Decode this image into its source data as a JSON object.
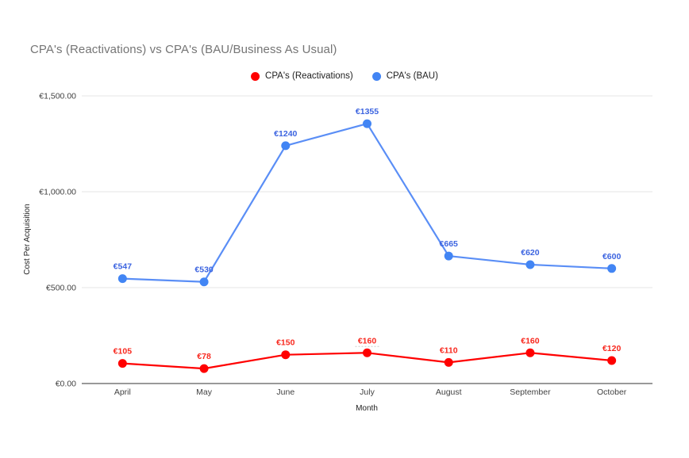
{
  "page": {
    "background": "#ffffff"
  },
  "header": {
    "title": "CPA's (Reactivations) vs CPA's (BAU/Business As Usual)",
    "title_color": "#757575"
  },
  "legend": {
    "position": "top-center",
    "items": [
      {
        "label": "CPA's (Reactivations)",
        "color": "#ff0000"
      },
      {
        "label": "CPA's (BAU)",
        "color": "#4285f4"
      }
    ]
  },
  "chart_data": {
    "type": "line",
    "title": "CPA's (Reactivations) vs CPA's (BAU/Business As Usual)",
    "categories": [
      "April",
      "May",
      "June",
      "July",
      "August",
      "September",
      "October"
    ],
    "series": [
      {
        "name": "CPA's (Reactivations)",
        "color": "#ff0000",
        "line_color": "#ff0000",
        "label_color": "#f8281e",
        "values": [
          105,
          78,
          150,
          160,
          110,
          160,
          120
        ],
        "labels": [
          "€105",
          "€78",
          "€150",
          "€160",
          "€110",
          "€160",
          "€120"
        ]
      },
      {
        "name": "CPA's (BAU)",
        "color": "#4285f4",
        "line_color": "#5a8ef6",
        "label_color": "#3c64e0",
        "values": [
          547,
          530,
          1240,
          1355,
          665,
          620,
          600
        ],
        "labels": [
          "€547",
          "€530",
          "€1240",
          "€1355",
          "€665",
          "€620",
          "€600"
        ]
      }
    ],
    "xlabel": "Month",
    "ylabel": "Cost Per Acquisition",
    "ylim": [
      0,
      1500
    ],
    "yticks": [
      {
        "value": 0,
        "label": "€0.00"
      },
      {
        "value": 500,
        "label": "€500.00"
      },
      {
        "value": 1000,
        "label": "€1,000.00"
      },
      {
        "value": 1500,
        "label": "€1,500.00"
      }
    ],
    "grid": true,
    "grid_color": "#e6e6e6",
    "axis_line_color": "#333333",
    "tick_label_color": "#424242",
    "axis_title_color": "#222222",
    "legend_position": "top",
    "label_underline": {
      "series_index": 0,
      "point_index": 3
    }
  }
}
